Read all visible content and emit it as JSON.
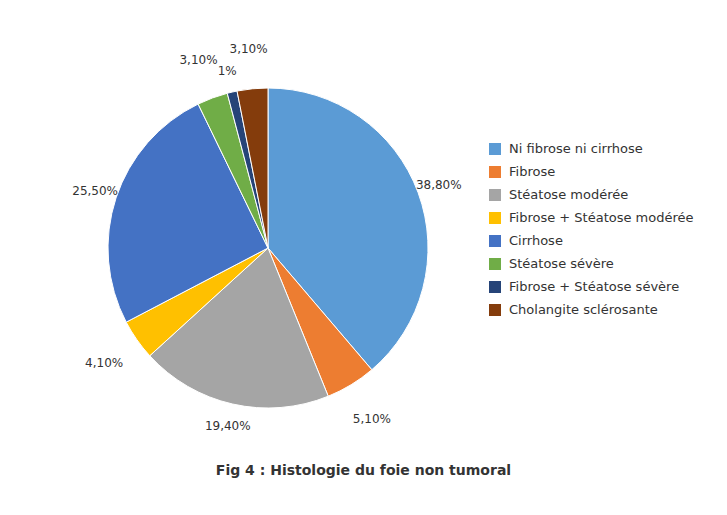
{
  "chart_data": {
    "type": "pie",
    "title": "Fig 4 : Histologie du foie non tumoral",
    "categories": [
      "Ni fibrose ni cirrhose",
      "Fibrose",
      "Stéatose modérée",
      "Fibrose + Stéatose modérée",
      "Cirrhose",
      "Stéatose sévère",
      "Fibrose + Stéatose sévère",
      "Cholangite sclérosante"
    ],
    "values": [
      38.8,
      5.1,
      19.4,
      4.1,
      25.5,
      3.1,
      1,
      3.1
    ],
    "value_labels": [
      "38,80%",
      "5,10%",
      "19,40%",
      "4,10%",
      "25,50%",
      "3,10%",
      "1%",
      "3,10%"
    ],
    "colors": [
      "#5B9BD5",
      "#ED7D31",
      "#A5A5A5",
      "#FFC000",
      "#4472C4",
      "#70AD47",
      "#264478",
      "#843C0C"
    ],
    "data_labels": true,
    "legend": "right"
  }
}
